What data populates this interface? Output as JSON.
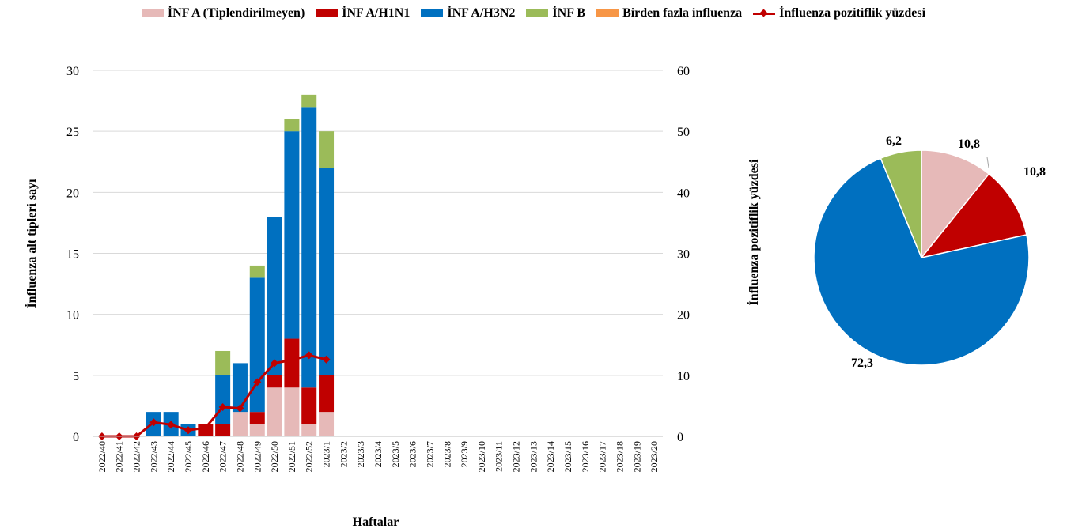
{
  "chart_data": [
    {
      "type": "bar",
      "stacked": true,
      "xlabel": "Haftalar",
      "ylabel": "İnfluenza alt tipleri sayı",
      "y2label": "İnfluenza pozitiflik yüzdesi",
      "ylim": [
        0,
        30
      ],
      "y2lim": [
        0,
        60
      ],
      "yticks": [
        "0",
        "5",
        "10",
        "15",
        "20",
        "25",
        "30"
      ],
      "y2ticks": [
        "0",
        "10",
        "20",
        "30",
        "40",
        "50",
        "60"
      ],
      "grid": true,
      "legend_position": "top",
      "categories": [
        "2022/40",
        "2022/41",
        "2022/42",
        "2022/43",
        "2022/44",
        "2022/45",
        "2022/46",
        "2022/47",
        "2022/48",
        "2022/49",
        "2022/50",
        "2022/51",
        "2022/52",
        "2023/1",
        "2023/2",
        "2023/3",
        "2023/4",
        "2023/5",
        "2023/6",
        "2023/7",
        "2023/8",
        "2023/9",
        "2023/10",
        "2023/11",
        "2023/12",
        "2023/13",
        "2023/14",
        "2023/15",
        "2023/16",
        "2023/17",
        "2023/18",
        "2023/19",
        "2023/20"
      ],
      "series": [
        {
          "name": "İNF A (Tiplendirilmeyen)",
          "color": "#E6B9B8",
          "values": [
            0,
            0,
            0,
            0,
            0,
            0,
            0,
            0,
            2,
            1,
            4,
            4,
            1,
            2,
            0,
            0,
            0,
            0,
            0,
            0,
            0,
            0,
            0,
            0,
            0,
            0,
            0,
            0,
            0,
            0,
            0,
            0,
            0
          ]
        },
        {
          "name": "İNF A/H1N1",
          "color": "#C00000",
          "values": [
            0,
            0,
            0,
            0,
            0,
            0,
            1,
            1,
            0,
            1,
            1,
            4,
            3,
            3,
            0,
            0,
            0,
            0,
            0,
            0,
            0,
            0,
            0,
            0,
            0,
            0,
            0,
            0,
            0,
            0,
            0,
            0,
            0
          ]
        },
        {
          "name": "İNF A/H3N2",
          "color": "#0070C0",
          "values": [
            0,
            0,
            0,
            2,
            2,
            1,
            0,
            4,
            4,
            11,
            13,
            17,
            23,
            17,
            0,
            0,
            0,
            0,
            0,
            0,
            0,
            0,
            0,
            0,
            0,
            0,
            0,
            0,
            0,
            0,
            0,
            0,
            0
          ]
        },
        {
          "name": "İNF B",
          "color": "#9BBB59",
          "values": [
            0,
            0,
            0,
            0,
            0,
            0,
            0,
            2,
            0,
            1,
            0,
            1,
            1,
            3,
            0,
            0,
            0,
            0,
            0,
            0,
            0,
            0,
            0,
            0,
            0,
            0,
            0,
            0,
            0,
            0,
            0,
            0,
            0
          ]
        },
        {
          "name": "Birden fazla influenza",
          "color": "#F79646",
          "values": [
            0,
            0,
            0,
            0,
            0,
            0,
            0,
            0,
            0,
            0,
            0,
            0,
            0,
            0,
            0,
            0,
            0,
            0,
            0,
            0,
            0,
            0,
            0,
            0,
            0,
            0,
            0,
            0,
            0,
            0,
            0,
            0,
            0
          ]
        }
      ],
      "line_series": {
        "name": "İnfluenza pozitiflik yüzdesi",
        "color": "#C00000",
        "axis": "right",
        "values": [
          0,
          0,
          0,
          2.3,
          1.9,
          1.0,
          1.4,
          4.8,
          4.6,
          8.9,
          12.0,
          12.5,
          13.3,
          12.6
        ]
      }
    },
    {
      "type": "pie",
      "labels": [
        "İNF A (Tiplendirilmeyen)",
        "İNF A/H1N1",
        "İNF A/H3N2",
        "İNF B"
      ],
      "values": [
        10.8,
        10.8,
        72.3,
        6.2
      ],
      "value_labels": [
        "10,8",
        "10,8",
        "72,3",
        "6,2"
      ],
      "colors": [
        "#E6B9B8",
        "#C00000",
        "#0070C0",
        "#9BBB59"
      ]
    }
  ]
}
